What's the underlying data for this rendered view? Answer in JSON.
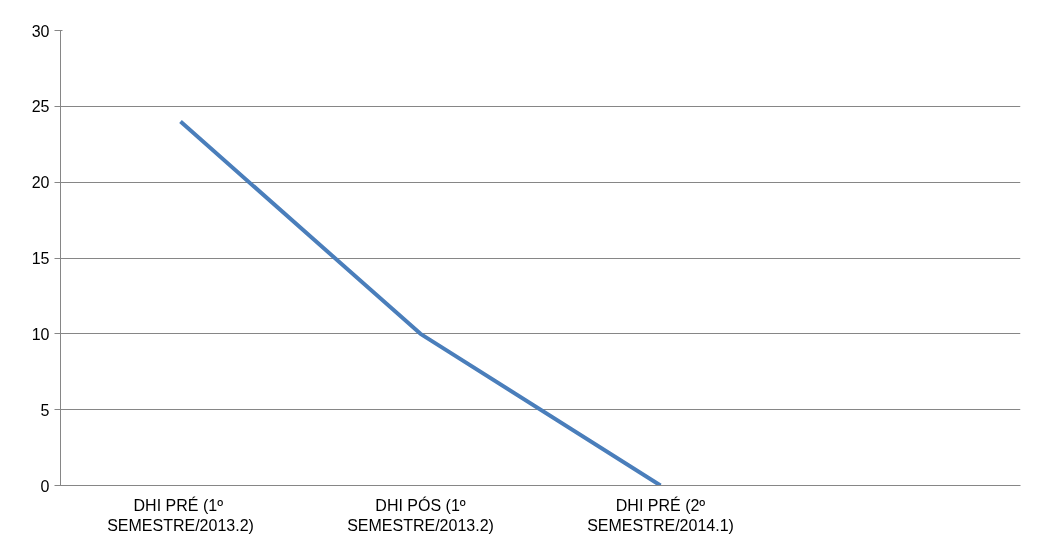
{
  "chart_data": {
    "type": "line",
    "categories": [
      "DHI PRÉ  (1º SEMESTRE/2013.2)",
      "DHI PÓS (1º SEMESTRE/2013.2)",
      "DHI PRÉ (2º SEMESTRE/2014.1)",
      null
    ],
    "series": [
      {
        "color": "#4a7ebb",
        "values": [
          24,
          10,
          0,
          null
        ]
      }
    ],
    "ylim": [
      0,
      30
    ],
    "yticks": [
      0,
      5,
      10,
      15,
      20,
      25,
      30
    ],
    "grid": "y",
    "marker": "none",
    "line_style": "solid"
  }
}
